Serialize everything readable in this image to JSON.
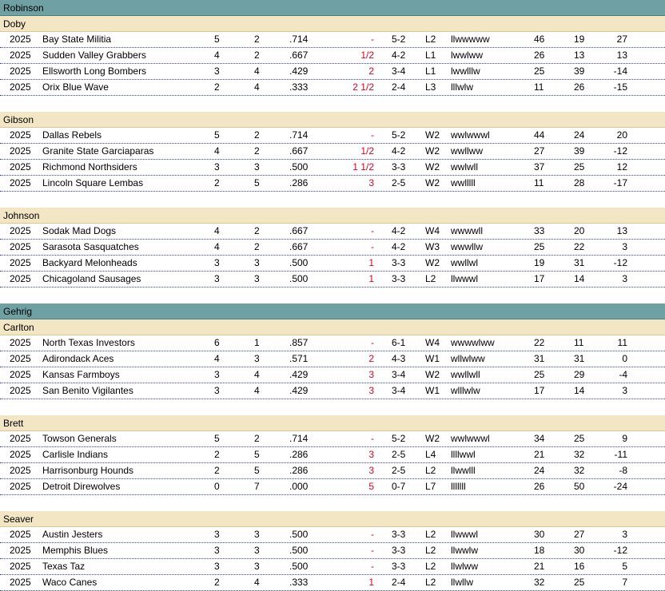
{
  "leagues": [
    {
      "name": "Robinson",
      "divisions": [
        {
          "name": "Doby",
          "teams": [
            {
              "year": "2025",
              "team": "Bay State Militia",
              "w": "5",
              "l": "2",
              "pct": ".714",
              "gb": "-",
              "rec": "5-2",
              "streak": "L2",
              "last": "llwwwww",
              "rs": "46",
              "ra": "19",
              "diff": "27"
            },
            {
              "year": "2025",
              "team": "Sudden Valley Grabbers",
              "w": "4",
              "l": "2",
              "pct": ".667",
              "gb": "1/2",
              "rec": "4-2",
              "streak": "L1",
              "last": "lwwlww",
              "rs": "26",
              "ra": "13",
              "diff": "13"
            },
            {
              "year": "2025",
              "team": "Ellsworth Long Bombers",
              "w": "3",
              "l": "4",
              "pct": ".429",
              "gb": "2",
              "rec": "3-4",
              "streak": "L1",
              "last": "lwwlllw",
              "rs": "25",
              "ra": "39",
              "diff": "-14"
            },
            {
              "year": "2025",
              "team": "Orix  Blue Wave",
              "w": "2",
              "l": "4",
              "pct": ".333",
              "gb": "2 1/2",
              "rec": "2-4",
              "streak": "L3",
              "last": "lllwlw",
              "rs": "11",
              "ra": "26",
              "diff": "-15"
            }
          ]
        },
        {
          "name": "Gibson",
          "teams": [
            {
              "year": "2025",
              "team": "Dallas Rebels",
              "w": "5",
              "l": "2",
              "pct": ".714",
              "gb": "-",
              "rec": "5-2",
              "streak": "W2",
              "last": "wwlwwwl",
              "rs": "44",
              "ra": "24",
              "diff": "20"
            },
            {
              "year": "2025",
              "team": "Granite State Garciaparas",
              "w": "4",
              "l": "2",
              "pct": ".667",
              "gb": "1/2",
              "rec": "4-2",
              "streak": "W2",
              "last": "wwllww",
              "rs": "27",
              "ra": "39",
              "diff": "-12"
            },
            {
              "year": "2025",
              "team": "Richmond Northsiders",
              "w": "3",
              "l": "3",
              "pct": ".500",
              "gb": "1 1/2",
              "rec": "3-3",
              "streak": "W2",
              "last": "wwlwll",
              "rs": "37",
              "ra": "25",
              "diff": "12"
            },
            {
              "year": "2025",
              "team": "Lincoln Square Lembas",
              "w": "2",
              "l": "5",
              "pct": ".286",
              "gb": "3",
              "rec": "2-5",
              "streak": "W2",
              "last": "wwlllll",
              "rs": "11",
              "ra": "28",
              "diff": "-17"
            }
          ]
        },
        {
          "name": "Johnson",
          "teams": [
            {
              "year": "2025",
              "team": "Sodak Mad Dogs",
              "w": "4",
              "l": "2",
              "pct": ".667",
              "gb": "-",
              "rec": "4-2",
              "streak": "W4",
              "last": "wwwwll",
              "rs": "33",
              "ra": "20",
              "diff": "13"
            },
            {
              "year": "2025",
              "team": "Sarasota Sasquatches",
              "w": "4",
              "l": "2",
              "pct": ".667",
              "gb": "-",
              "rec": "4-2",
              "streak": "W3",
              "last": "wwwllw",
              "rs": "25",
              "ra": "22",
              "diff": "3"
            },
            {
              "year": "2025",
              "team": "Backyard Melonheads",
              "w": "3",
              "l": "3",
              "pct": ".500",
              "gb": "1",
              "rec": "3-3",
              "streak": "W2",
              "last": "wwllwl",
              "rs": "19",
              "ra": "31",
              "diff": "-12"
            },
            {
              "year": "2025",
              "team": "Chicagoland Sausages",
              "w": "3",
              "l": "3",
              "pct": ".500",
              "gb": "1",
              "rec": "3-3",
              "streak": "L2",
              "last": "llwwwl",
              "rs": "17",
              "ra": "14",
              "diff": "3"
            }
          ]
        }
      ]
    },
    {
      "name": "Gehrig",
      "divisions": [
        {
          "name": "Carlton",
          "teams": [
            {
              "year": "2025",
              "team": "North Texas Investors",
              "w": "6",
              "l": "1",
              "pct": ".857",
              "gb": "-",
              "rec": "6-1",
              "streak": "W4",
              "last": "wwwwlww",
              "rs": "22",
              "ra": "11",
              "diff": "11"
            },
            {
              "year": "2025",
              "team": "Adirondack Aces",
              "w": "4",
              "l": "3",
              "pct": ".571",
              "gb": "2",
              "rec": "4-3",
              "streak": "W1",
              "last": "wllwlww",
              "rs": "31",
              "ra": "31",
              "diff": "0"
            },
            {
              "year": "2025",
              "team": "Kansas Farmboys",
              "w": "3",
              "l": "4",
              "pct": ".429",
              "gb": "3",
              "rec": "3-4",
              "streak": "W2",
              "last": "wwllwll",
              "rs": "25",
              "ra": "29",
              "diff": "-4"
            },
            {
              "year": "2025",
              "team": "San Benito Vigilantes",
              "w": "3",
              "l": "4",
              "pct": ".429",
              "gb": "3",
              "rec": "3-4",
              "streak": "W1",
              "last": "wlllwlw",
              "rs": "17",
              "ra": "14",
              "diff": "3"
            }
          ]
        },
        {
          "name": "Brett",
          "teams": [
            {
              "year": "2025",
              "team": "Towson  Generals",
              "w": "5",
              "l": "2",
              "pct": ".714",
              "gb": "-",
              "rec": "5-2",
              "streak": "W2",
              "last": "wwlwwwl",
              "rs": "34",
              "ra": "25",
              "diff": "9"
            },
            {
              "year": "2025",
              "team": "Carlisle Indians",
              "w": "2",
              "l": "5",
              "pct": ".286",
              "gb": "3",
              "rec": "2-5",
              "streak": "L4",
              "last": "llllwwl",
              "rs": "21",
              "ra": "32",
              "diff": "-11"
            },
            {
              "year": "2025",
              "team": "Harrisonburg Hounds",
              "w": "2",
              "l": "5",
              "pct": ".286",
              "gb": "3",
              "rec": "2-5",
              "streak": "L2",
              "last": "llwwlll",
              "rs": "24",
              "ra": "32",
              "diff": "-8"
            },
            {
              "year": "2025",
              "team": "Detroit Direwolves",
              "w": "0",
              "l": "7",
              "pct": ".000",
              "gb": "5",
              "rec": "0-7",
              "streak": "L7",
              "last": "lllllll",
              "rs": "26",
              "ra": "50",
              "diff": "-24"
            }
          ]
        },
        {
          "name": "Seaver",
          "teams": [
            {
              "year": "2025",
              "team": "Austin Jesters",
              "w": "3",
              "l": "3",
              "pct": ".500",
              "gb": "-",
              "rec": "3-3",
              "streak": "L2",
              "last": "llwwwl",
              "rs": "30",
              "ra": "27",
              "diff": "3"
            },
            {
              "year": "2025",
              "team": "Memphis Blues",
              "w": "3",
              "l": "3",
              "pct": ".500",
              "gb": "-",
              "rec": "3-3",
              "streak": "L2",
              "last": "llwwlw",
              "rs": "18",
              "ra": "30",
              "diff": "-12"
            },
            {
              "year": "2025",
              "team": "Texas Taz",
              "w": "3",
              "l": "3",
              "pct": ".500",
              "gb": "-",
              "rec": "3-3",
              "streak": "L2",
              "last": "llwlww",
              "rs": "21",
              "ra": "16",
              "diff": "5"
            },
            {
              "year": "2025",
              "team": "Waco Canes",
              "w": "2",
              "l": "4",
              "pct": ".333",
              "gb": "1",
              "rec": "2-4",
              "streak": "L2",
              "last": "llwllw",
              "rs": "32",
              "ra": "25",
              "diff": "7"
            }
          ]
        }
      ]
    }
  ]
}
